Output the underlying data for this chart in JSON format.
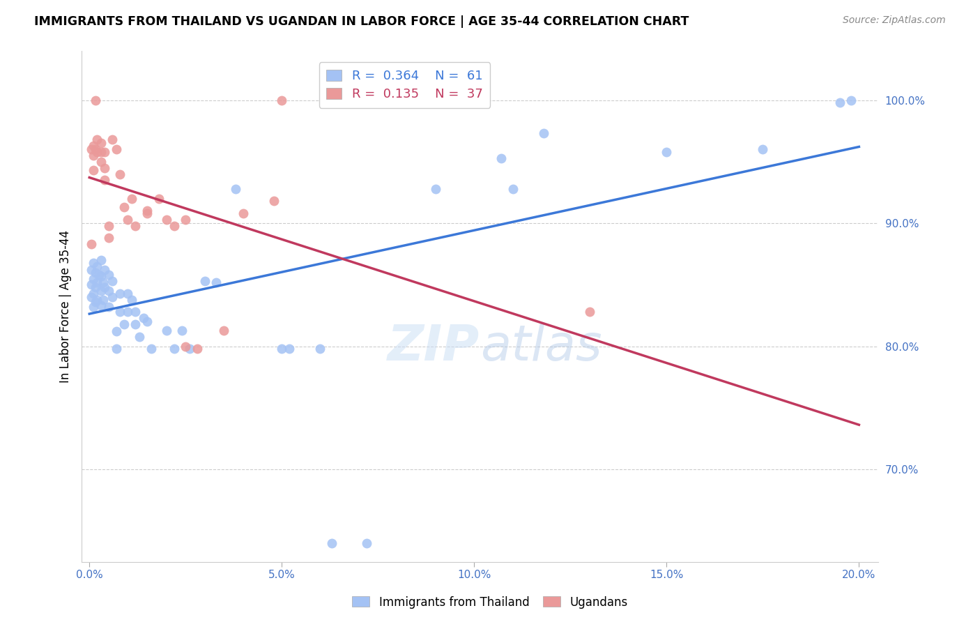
{
  "title": "IMMIGRANTS FROM THAILAND VS UGANDAN IN LABOR FORCE | AGE 35-44 CORRELATION CHART",
  "source": "Source: ZipAtlas.com",
  "ylabel": "In Labor Force | Age 35-44",
  "xlabel_ticks": [
    "0.0%",
    "5.0%",
    "10.0%",
    "15.0%",
    "20.0%"
  ],
  "xlabel_vals": [
    0.0,
    0.05,
    0.1,
    0.15,
    0.2
  ],
  "ylabel_ticks": [
    "70.0%",
    "80.0%",
    "90.0%",
    "100.0%"
  ],
  "ylabel_vals": [
    0.7,
    0.8,
    0.9,
    1.0
  ],
  "xlim": [
    -0.002,
    0.205
  ],
  "ylim": [
    0.625,
    1.04
  ],
  "watermark": "ZIPatlas",
  "blue_color": "#a4c2f4",
  "pink_color": "#ea9999",
  "line_blue": "#3c78d8",
  "line_pink": "#c0395e",
  "axis_label_color": "#4472c4",
  "grid_color": "#cccccc",
  "thailand_x": [
    0.0005,
    0.0005,
    0.0005,
    0.001,
    0.001,
    0.001,
    0.001,
    0.0015,
    0.0015,
    0.0015,
    0.002,
    0.002,
    0.002,
    0.0025,
    0.003,
    0.003,
    0.003,
    0.003,
    0.0035,
    0.0035,
    0.004,
    0.004,
    0.005,
    0.005,
    0.005,
    0.006,
    0.006,
    0.007,
    0.007,
    0.008,
    0.008,
    0.009,
    0.01,
    0.01,
    0.011,
    0.012,
    0.012,
    0.013,
    0.014,
    0.015,
    0.016,
    0.02,
    0.022,
    0.024,
    0.026,
    0.03,
    0.033,
    0.038,
    0.05,
    0.052,
    0.06,
    0.063,
    0.072,
    0.09,
    0.107,
    0.11,
    0.118,
    0.15,
    0.175,
    0.195,
    0.198
  ],
  "thailand_y": [
    0.862,
    0.85,
    0.84,
    0.868,
    0.855,
    0.843,
    0.832,
    0.86,
    0.848,
    0.836,
    0.865,
    0.852,
    0.838,
    0.858,
    0.87,
    0.857,
    0.845,
    0.833,
    0.852,
    0.838,
    0.862,
    0.848,
    0.858,
    0.845,
    0.832,
    0.853,
    0.84,
    0.812,
    0.798,
    0.843,
    0.828,
    0.818,
    0.843,
    0.828,
    0.838,
    0.828,
    0.818,
    0.808,
    0.823,
    0.82,
    0.798,
    0.813,
    0.798,
    0.813,
    0.798,
    0.853,
    0.852,
    0.928,
    0.798,
    0.798,
    0.798,
    0.64,
    0.64,
    0.928,
    0.953,
    0.928,
    0.973,
    0.958,
    0.96,
    0.998,
    1.0
  ],
  "ugandan_x": [
    0.0005,
    0.0005,
    0.001,
    0.001,
    0.001,
    0.0015,
    0.0015,
    0.002,
    0.002,
    0.003,
    0.003,
    0.003,
    0.004,
    0.004,
    0.004,
    0.005,
    0.005,
    0.006,
    0.007,
    0.008,
    0.009,
    0.01,
    0.011,
    0.012,
    0.015,
    0.018,
    0.02,
    0.022,
    0.025,
    0.028,
    0.035,
    0.04,
    0.048,
    0.05,
    0.13,
    0.015,
    0.025
  ],
  "ugandan_y": [
    0.96,
    0.883,
    0.963,
    0.955,
    0.943,
    1.0,
    0.96,
    0.968,
    0.958,
    0.965,
    0.958,
    0.95,
    0.958,
    0.945,
    0.935,
    0.898,
    0.888,
    0.968,
    0.96,
    0.94,
    0.913,
    0.903,
    0.92,
    0.898,
    0.908,
    0.92,
    0.903,
    0.898,
    0.903,
    0.798,
    0.813,
    0.908,
    0.918,
    1.0,
    0.828,
    0.91,
    0.8
  ]
}
